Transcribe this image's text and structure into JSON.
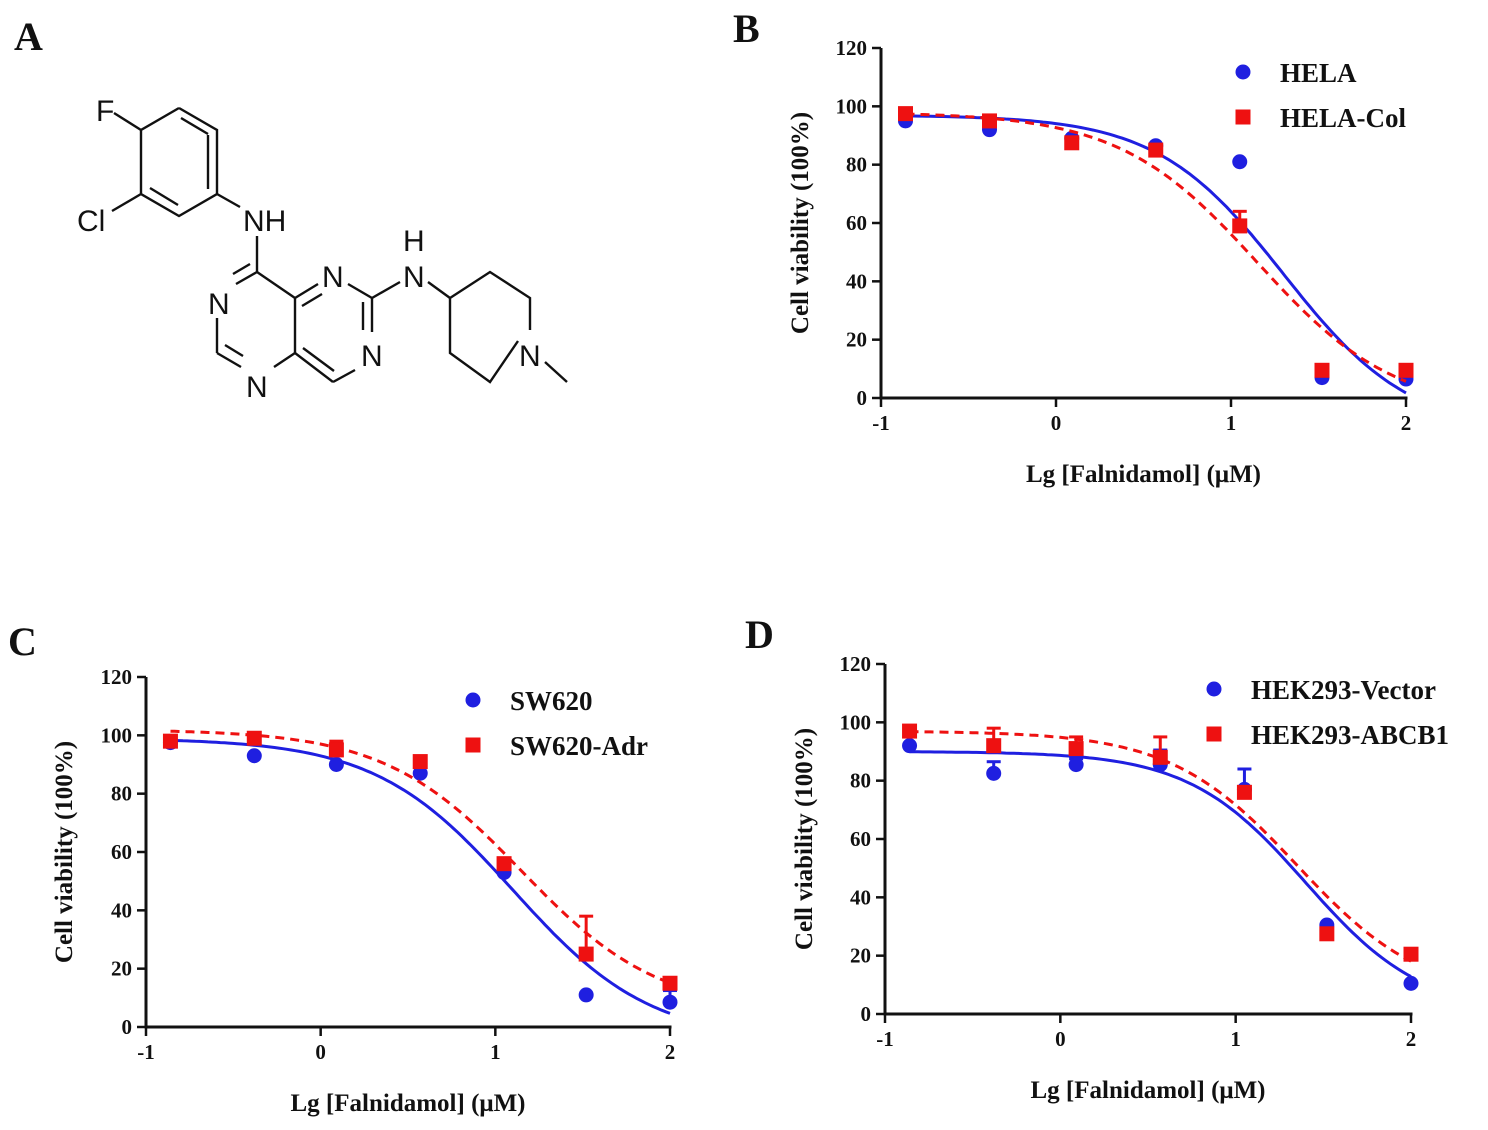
{
  "panels": {
    "A": "A",
    "B": "B",
    "C": "C",
    "D": "D"
  },
  "structure": {
    "name": "Falnidamol",
    "atoms": {
      "F": "F",
      "Cl": "Cl",
      "NH1": "NH",
      "N3": "N",
      "N1": "N",
      "N5": "N",
      "N7": "N",
      "NH2_H": "H",
      "NH2_N": "N",
      "Npip": "N"
    }
  },
  "colors": {
    "series1": "#1f1fe0",
    "series2": "#ee1111",
    "axis": "#111111"
  },
  "chart_data": [
    {
      "panel": "B",
      "type": "scatter",
      "xlabel": "Lg [Falnidamol] (μM)",
      "ylabel": "Cell viability (100%)",
      "xlim": [
        -1,
        2
      ],
      "ylim": [
        0,
        120
      ],
      "xticks": [
        -1,
        0,
        1,
        2
      ],
      "yticks": [
        0,
        20,
        40,
        60,
        80,
        100,
        120
      ],
      "legend_position": "top-right",
      "grid": false,
      "x": [
        -0.86,
        -0.38,
        0.09,
        0.57,
        1.05,
        1.52,
        2.0
      ],
      "series": [
        {
          "name": "HELA",
          "marker": "circle",
          "line": "solid",
          "values": [
            95,
            92,
            89,
            86.5,
            81,
            7,
            6.5
          ],
          "errors": [
            0,
            0,
            0,
            0,
            0,
            0,
            0
          ],
          "fit": {
            "top": 97,
            "bottom": -12,
            "logIC50": 1.3,
            "hill": 1.2
          }
        },
        {
          "name": "HELA-Col",
          "marker": "square",
          "line": "dashed",
          "values": [
            97.5,
            95,
            87.5,
            85,
            59,
            9.5,
            9.5
          ],
          "errors": [
            0,
            1.5,
            0,
            0,
            5,
            0,
            0
          ],
          "fit": {
            "top": 98,
            "bottom": -5,
            "logIC50": 1.15,
            "hill": 1.1
          }
        }
      ]
    },
    {
      "panel": "C",
      "type": "scatter",
      "xlabel": "Lg [Falnidamol] (μM)",
      "ylabel": "Cell viability (100%)",
      "xlim": [
        -1,
        2
      ],
      "ylim": [
        0,
        120
      ],
      "xticks": [
        -1,
        0,
        1,
        2
      ],
      "yticks": [
        0,
        20,
        40,
        60,
        80,
        100,
        120
      ],
      "legend_position": "top-right",
      "grid": false,
      "x": [
        -0.86,
        -0.38,
        0.09,
        0.57,
        1.05,
        1.52,
        2.0
      ],
      "series": [
        {
          "name": "SW620",
          "marker": "circle",
          "line": "solid",
          "values": [
            97.5,
            93,
            90,
            87,
            53,
            11,
            8.5
          ],
          "errors": [
            0,
            0,
            0,
            0,
            0,
            0,
            4
          ],
          "fit": {
            "top": 99,
            "bottom": -5,
            "logIC50": 1.1,
            "hill": 1.1
          }
        },
        {
          "name": "SW620-Adr",
          "marker": "square",
          "line": "dashed",
          "values": [
            98,
            99,
            95,
            91,
            56,
            25,
            15
          ],
          "errors": [
            0,
            1,
            3,
            0,
            1,
            13,
            0
          ],
          "fit": {
            "top": 102,
            "bottom": 5,
            "logIC50": 1.15,
            "hill": 1.1
          }
        }
      ]
    },
    {
      "panel": "D",
      "type": "scatter",
      "xlabel": "Lg [Falnidamol] (μM)",
      "ylabel": "Cell viability (100%)",
      "xlim": [
        -1,
        2
      ],
      "ylim": [
        0,
        120
      ],
      "xticks": [
        -1,
        0,
        1,
        2
      ],
      "yticks": [
        0,
        20,
        40,
        60,
        80,
        100,
        120
      ],
      "legend_position": "top-right",
      "grid": false,
      "x": [
        -0.86,
        -0.38,
        0.09,
        0.57,
        1.05,
        1.52,
        2.0
      ],
      "series": [
        {
          "name": "HEK293-Vector",
          "marker": "circle",
          "line": "solid",
          "values": [
            92,
            82.5,
            85.5,
            85.5,
            77,
            30.5,
            10.5
          ],
          "errors": [
            4,
            4,
            2,
            5,
            7,
            0,
            0
          ],
          "fit": {
            "top": 90,
            "bottom": 0,
            "logIC50": 1.4,
            "hill": 1.3
          }
        },
        {
          "name": "HEK293-ABCB1",
          "marker": "square",
          "line": "dashed",
          "values": [
            97,
            92,
            91,
            88,
            76,
            27.5,
            20.5
          ],
          "errors": [
            0,
            6,
            4,
            7,
            0,
            0,
            0
          ],
          "fit": {
            "top": 97,
            "bottom": 5,
            "logIC50": 1.35,
            "hill": 1.2
          }
        }
      ]
    }
  ]
}
